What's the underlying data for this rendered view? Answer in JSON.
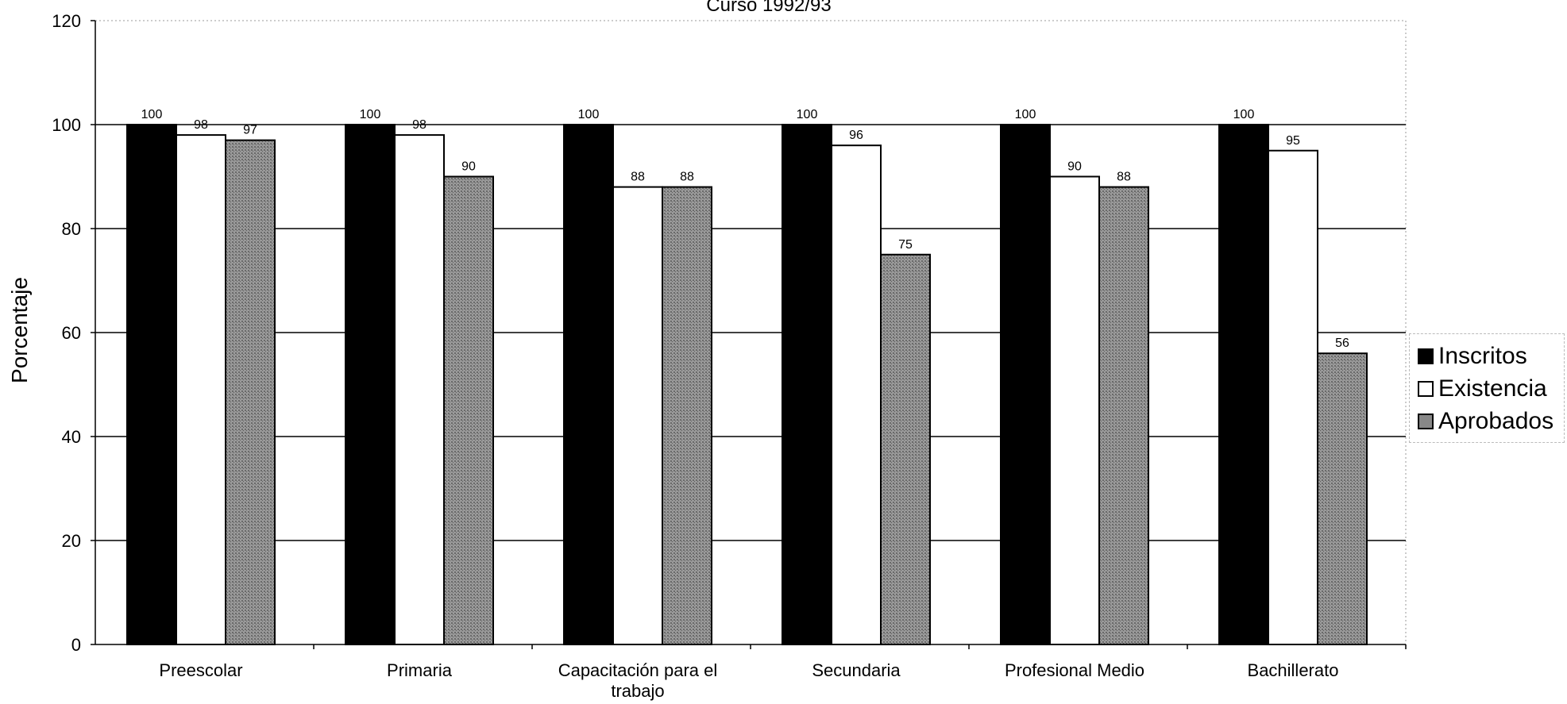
{
  "chart_data": {
    "type": "bar",
    "title": "Curso 1992/93",
    "ylabel": "Porcentaje",
    "xlabel": "",
    "ylim": [
      0,
      120
    ],
    "yticks": [
      0,
      20,
      40,
      60,
      80,
      100,
      120
    ],
    "grid": true,
    "legend_position": "right",
    "categories": [
      [
        "Preescolar"
      ],
      [
        "Primaria"
      ],
      [
        "Capacitación para el",
        "trabajo"
      ],
      [
        "Secundaria"
      ],
      [
        "Profesional Medio"
      ],
      [
        "Bachillerato"
      ]
    ],
    "series": [
      {
        "name": "Inscritos",
        "color": "#000000",
        "values": [
          100,
          100,
          100,
          100,
          100,
          100
        ]
      },
      {
        "name": "Existencia",
        "color": "#ffffff",
        "values": [
          98,
          98,
          88,
          96,
          90,
          95
        ]
      },
      {
        "name": "Aprobados",
        "color": "#8a8a8a",
        "values": [
          97,
          90,
          88,
          75,
          88,
          56
        ]
      }
    ]
  }
}
